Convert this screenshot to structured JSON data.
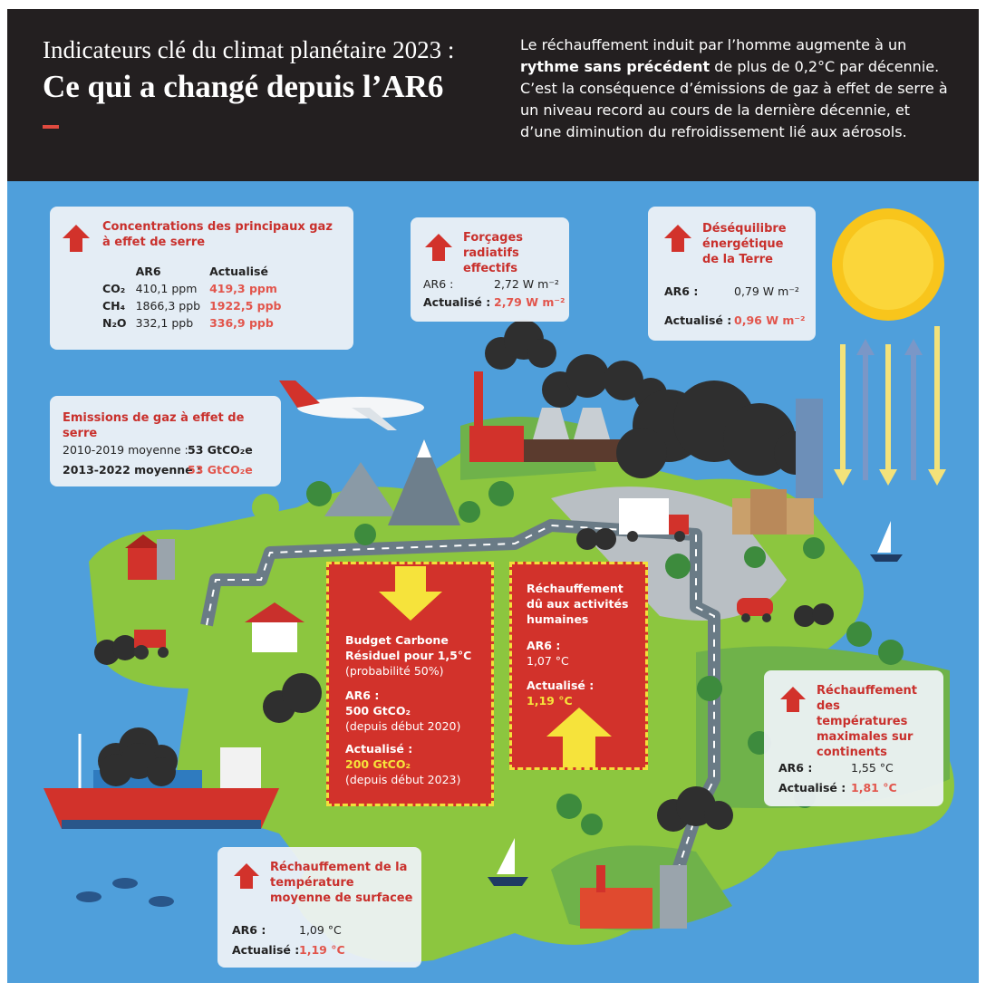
{
  "header": {
    "title_line1": "Indicateurs clé du climat planétaire 2023 :",
    "title_line2": "Ce qui a changé depuis l’AR6",
    "description": [
      "Le réchauffement induit par l’homme augmente à un ",
      "rythme sans précédent",
      " de plus de 0,2°C par décennie. C’est la conséquence d’émissions de gaz à effet de serre à un niveau record au cours de la dernière décennie, et d’une diminution du refroidissement lié aux aérosols."
    ]
  },
  "concentrations": {
    "title": "Concentrations des principaux gaz à effet de serre",
    "columns": [
      "AR6",
      "Actualisé"
    ],
    "rows": [
      [
        "CO₂",
        "410,1 ppm",
        "419,3 ppm"
      ],
      [
        "CH₄",
        "1866,3 ppb",
        "1922,5 ppb"
      ],
      [
        "N₂O",
        "332,1 ppb",
        "336,9 ppb"
      ]
    ]
  },
  "forcages": {
    "title": "Forçages radiatifs effectifs",
    "ar6_label": "AR6 :",
    "ar6_value": "2,72 W m⁻²",
    "updated_label": "Actualisé :",
    "updated_value": "2,79 W m⁻²"
  },
  "desequilibre": {
    "title": "Déséquilibre énergétique de la Terre",
    "ar6_label": "AR6 :",
    "ar6_value": "0,79 W m⁻²",
    "updated_label": "Actualisé :",
    "updated_value": "0,96 W m⁻²"
  },
  "emissions": {
    "title": "Emissions de gaz à effet de serre",
    "rows": [
      [
        "2010-2019 moyenne :",
        "53 GtCO₂e"
      ],
      [
        "2013-2022 moyenne :",
        "53 GtCO₂e"
      ]
    ]
  },
  "budget": {
    "title": "Budget Carbone Résiduel pour 1,5°C",
    "note": "(probabilité 50%)",
    "ar6_label": "AR6 :",
    "ar6_value": "500 GtCO₂",
    "ar6_note": "(depuis début 2020)",
    "updated_label": "Actualisé :",
    "updated_value": "200 GtCO₂",
    "updated_note": "(depuis début 2023)"
  },
  "human_warming": {
    "title": "Réchauffement dû aux activités humaines",
    "ar6_label": "AR6 :",
    "ar6_value": "1,07 °C",
    "updated_label": "Actualisé :",
    "updated_value": "1,19 °C"
  },
  "max_temp": {
    "title": "Réchauffement des températures maximales sur continents",
    "ar6_label": "AR6 :",
    "ar6_value": "1,55 °C",
    "updated_label": "Actualisé :",
    "updated_value": "1,81 °C"
  },
  "surface_temp": {
    "title": "Réchauffement de la température moyenne de surfacee",
    "ar6_label": "AR6 :",
    "ar6_value": "1,09 °C",
    "updated_label": "Actualisé :",
    "updated_value": "1,19 °C"
  }
}
